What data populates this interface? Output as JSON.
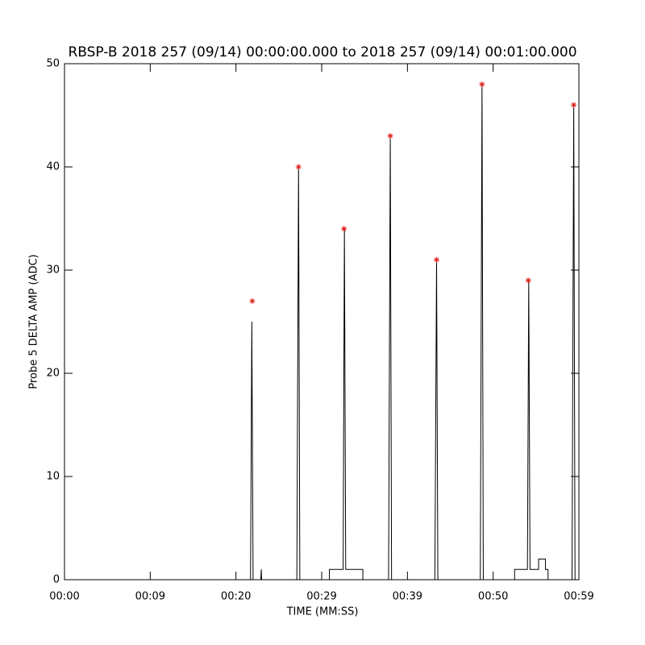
{
  "chart_data": {
    "type": "line",
    "title": "RBSP-B 2018 257 (09/14) 00:00:00.000 to 2018 257 (09/14) 00:01:00.000",
    "x_label": "TIME (MM:SS)",
    "y_label": "Probe 5 DELTA AMP (ADC)",
    "xlim": [
      0,
      60
    ],
    "ylim": [
      0,
      50
    ],
    "xticks": [
      {
        "value": 0,
        "label": "00:00"
      },
      {
        "value": 10,
        "label": "00:09"
      },
      {
        "value": 20,
        "label": "00:20"
      },
      {
        "value": 30,
        "label": "00:29"
      },
      {
        "value": 40,
        "label": "00:39"
      },
      {
        "value": 50,
        "label": "00:50"
      },
      {
        "value": 60,
        "label": "00:59"
      }
    ],
    "yticks": [
      0,
      10,
      20,
      30,
      40,
      50
    ],
    "series": [
      {
        "color": "#000000",
        "marker": "none",
        "x": [
          0,
          21.7,
          21.85,
          22.0,
          22.9,
          22.95,
          23.0,
          27.1,
          27.3,
          27.45,
          30.9,
          30.9,
          32.5,
          32.65,
          32.8,
          34.8,
          34.8,
          37.8,
          38.0,
          38.15,
          43.2,
          43.4,
          43.55,
          48.5,
          48.7,
          48.85,
          52.5,
          52.5,
          54.0,
          54.15,
          54.3,
          55.3,
          55.3,
          56.1,
          56.1,
          56.4,
          56.4,
          59.2,
          59.4,
          59.55
        ],
        "values": [
          0,
          0,
          25,
          0,
          0,
          1,
          0,
          0,
          40,
          0,
          0,
          1,
          1,
          34,
          1,
          1,
          0,
          0,
          43,
          0,
          0,
          31,
          0,
          0,
          48,
          0,
          0,
          1,
          1,
          29,
          1,
          1,
          2,
          2,
          1,
          1,
          0,
          0,
          46,
          0
        ]
      },
      {
        "color": "#e0201a",
        "marker": "star",
        "x": [
          21.9,
          27.3,
          32.6,
          38.0,
          43.4,
          48.7,
          54.1,
          59.4
        ],
        "values": [
          27,
          40,
          34,
          43,
          31,
          48,
          29,
          46
        ]
      }
    ]
  }
}
